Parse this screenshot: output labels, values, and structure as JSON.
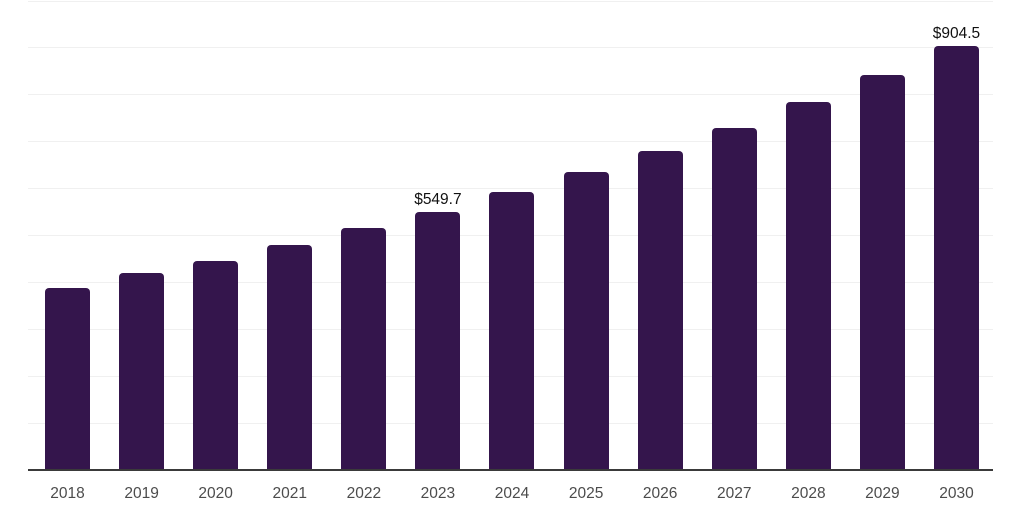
{
  "chart_data": {
    "type": "bar",
    "title": "",
    "xlabel": "",
    "ylabel": "",
    "categories": [
      "2018",
      "2019",
      "2020",
      "2021",
      "2022",
      "2023",
      "2024",
      "2025",
      "2026",
      "2027",
      "2028",
      "2029",
      "2030"
    ],
    "values": [
      388,
      420,
      445,
      479,
      516,
      549.7,
      592,
      635,
      681,
      729,
      784,
      842,
      904.5
    ],
    "data_labels": [
      null,
      null,
      null,
      null,
      null,
      "$549.7",
      null,
      null,
      null,
      null,
      null,
      null,
      "$904.5"
    ],
    "ylim": [
      0,
      1000
    ],
    "gridline_step": 100,
    "grid": "horizontal",
    "y_axis_labels_visible": false,
    "legend": "none"
  },
  "style": {
    "bar_color": "#34154c",
    "grid_color": "#f0f0f0",
    "axis_color": "#3a3a3a",
    "tick_label_color": "#4c4c4c",
    "value_label_color": "#111111",
    "background": "#ffffff"
  }
}
